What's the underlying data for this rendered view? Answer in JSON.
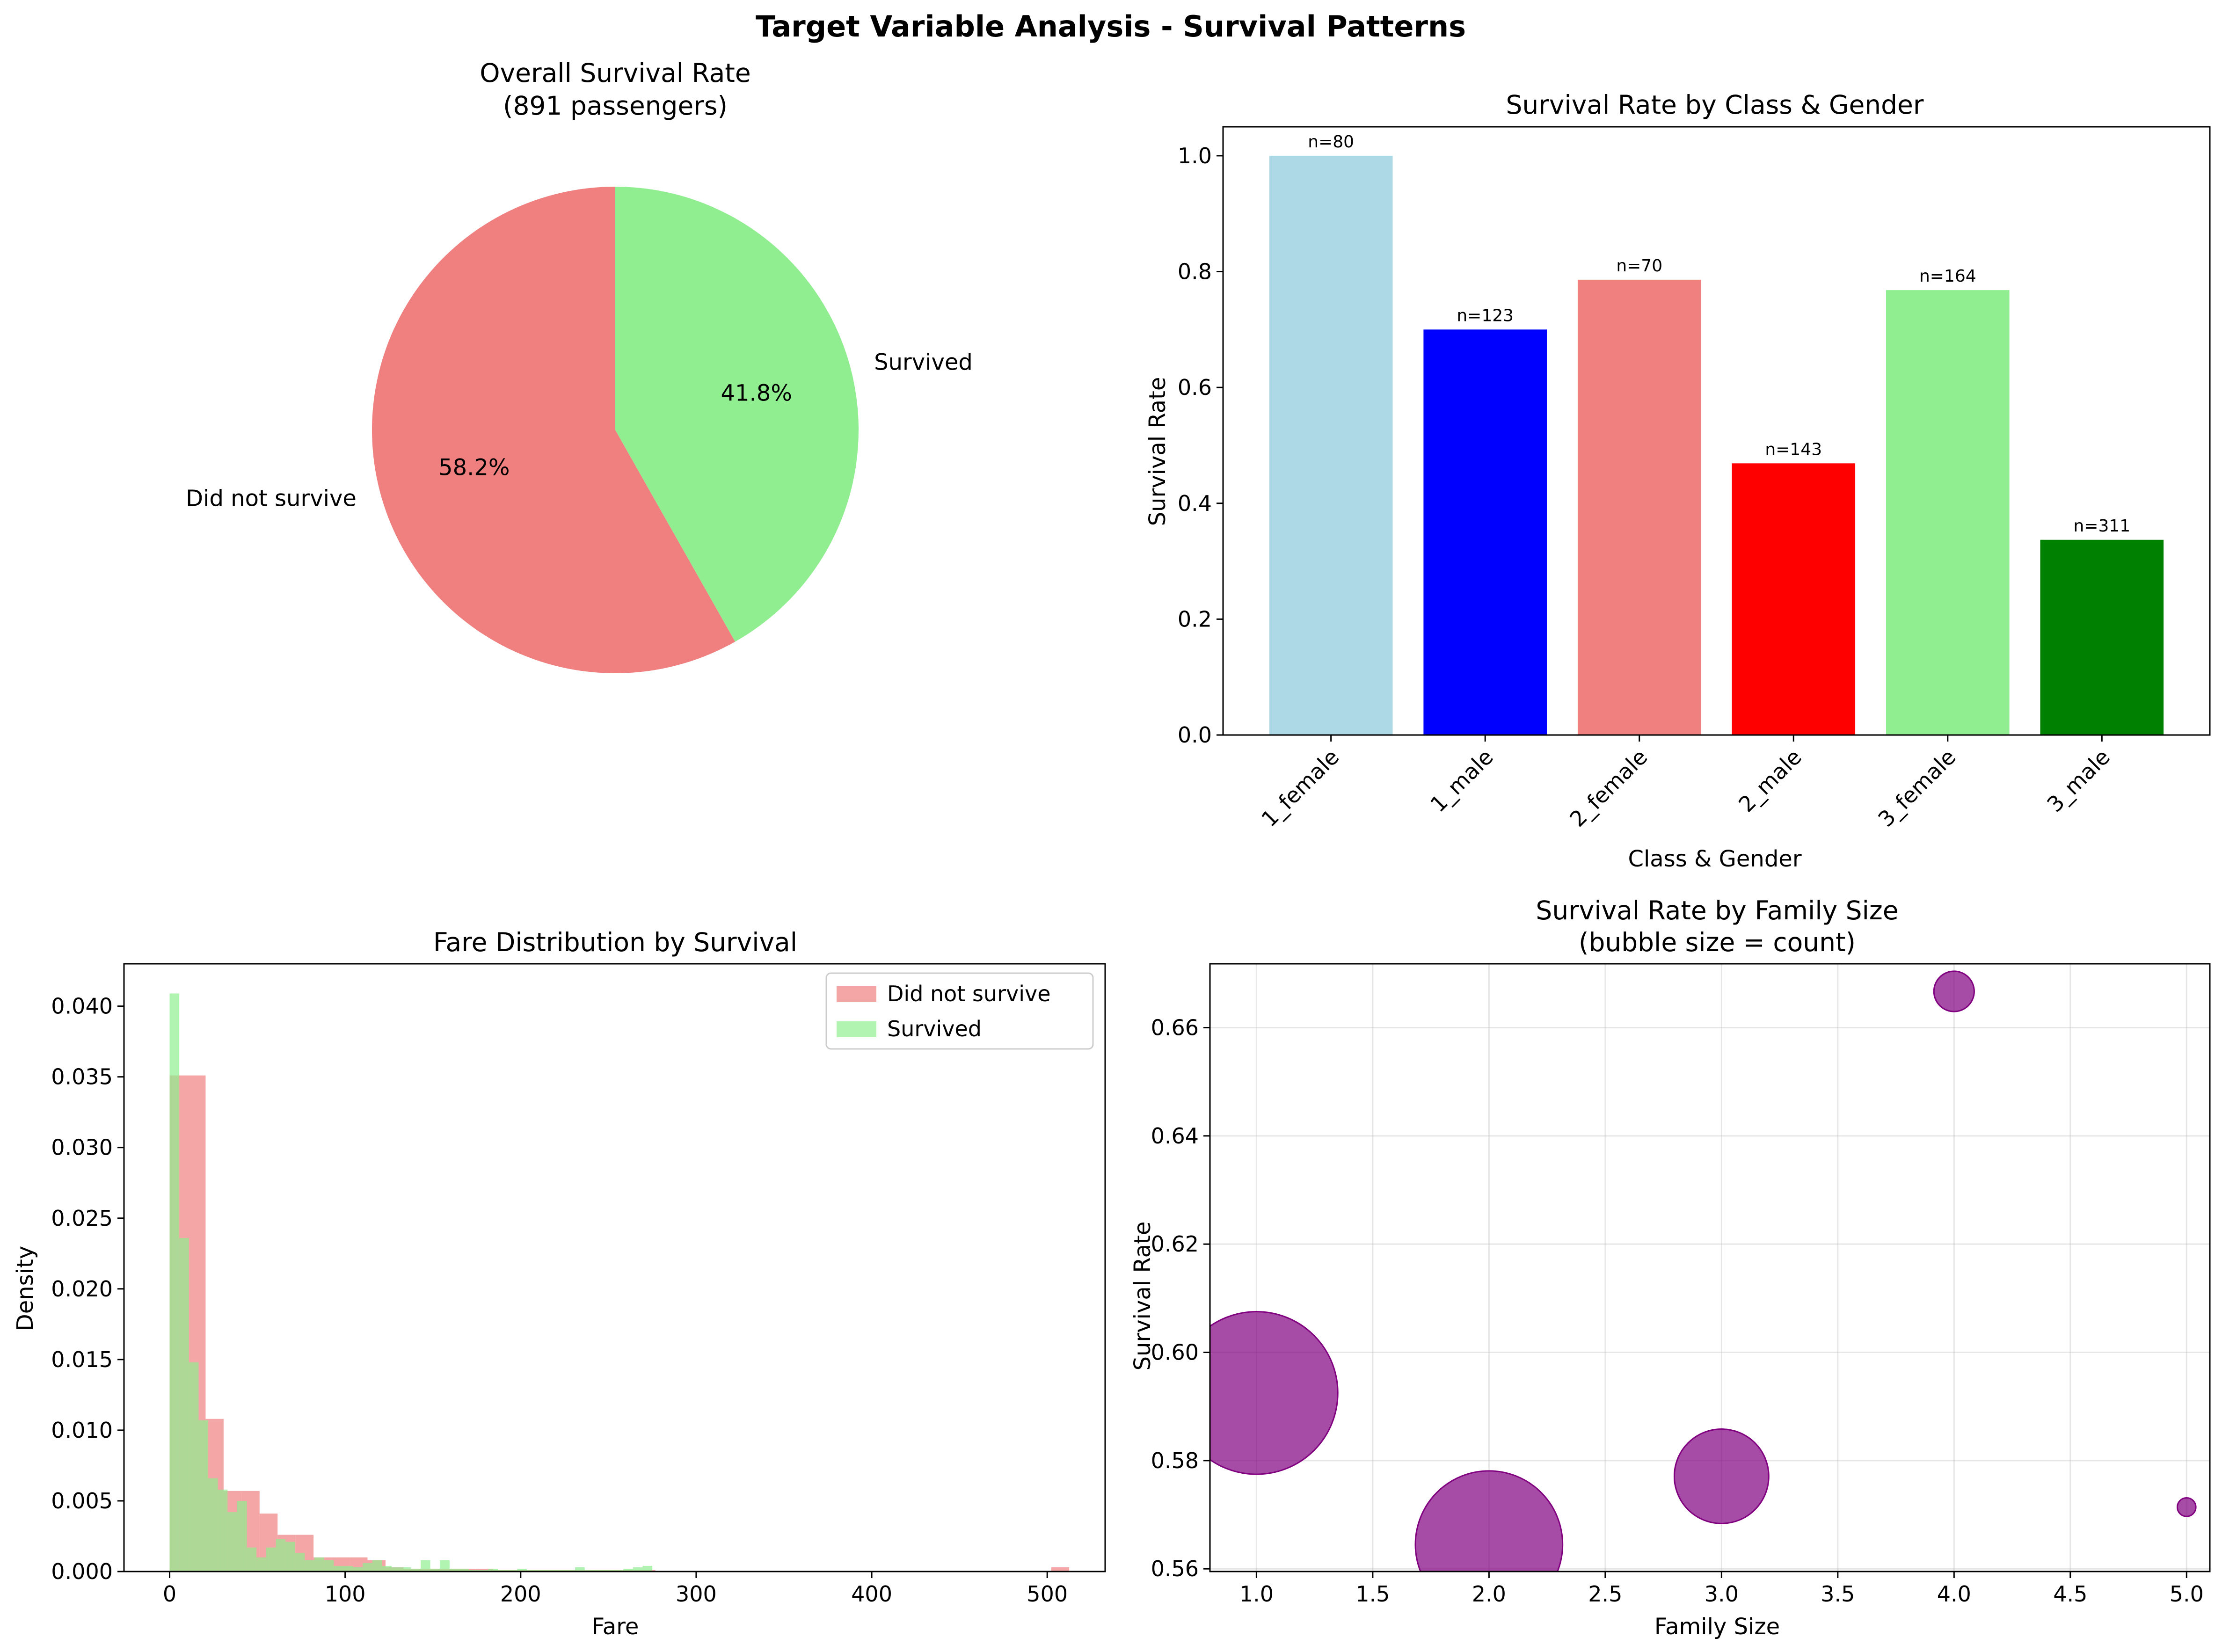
{
  "suptitle": "Target Variable Analysis - Survival Patterns",
  "chart_data": [
    {
      "type": "pie",
      "title_line1": "Overall Survival Rate",
      "title_line2": "(891 passengers)",
      "slices": [
        {
          "label": "Did not survive",
          "pct_label": "58.2%",
          "value": 58.2,
          "color": "#f08080"
        },
        {
          "label": "Survived",
          "pct_label": "41.8%",
          "value": 41.8,
          "color": "#90ee90"
        }
      ],
      "startangle": 90
    },
    {
      "type": "bar",
      "title": "Survival Rate by Class & Gender",
      "xlabel": "Class & Gender",
      "ylabel": "Survival Rate",
      "ylim": [
        0,
        1.05
      ],
      "yticks": [
        "0.0",
        "0.2",
        "0.4",
        "0.6",
        "0.8",
        "1.0"
      ],
      "categories": [
        "1_female",
        "1_male",
        "2_female",
        "2_male",
        "3_female",
        "3_male"
      ],
      "values": [
        1.0,
        0.7,
        0.786,
        0.469,
        0.768,
        0.337
      ],
      "annotations": [
        "n=80",
        "n=123",
        "n=70",
        "n=143",
        "n=164",
        "n=311"
      ],
      "colors": [
        "#add8e6",
        "#0000ff",
        "#f08080",
        "#ff0000",
        "#90ee90",
        "#008000"
      ]
    },
    {
      "type": "histogram",
      "title": "Fare Distribution by Survival",
      "xlabel": "Fare",
      "ylabel": "Density",
      "xlim": [
        -26,
        533
      ],
      "ylim": [
        0,
        0.043
      ],
      "xticks": [
        "0",
        "100",
        "200",
        "300",
        "400",
        "500"
      ],
      "yticks": [
        "0.000",
        "0.005",
        "0.010",
        "0.015",
        "0.020",
        "0.025",
        "0.030",
        "0.035",
        "0.040"
      ],
      "legend_position": "top-right",
      "series": [
        {
          "name": "Did not survive",
          "color": "#f08080",
          "bin_width": 10.25,
          "densities": [
            0.0351,
            0.0351,
            0.0108,
            0.0057,
            0.0057,
            0.0041,
            0.0026,
            0.0026,
            0.001,
            0.001,
            0.001,
            0.0008,
            0.0003,
            0.0002,
            0.0002,
            0.0002,
            0.0002,
            0.0002,
            0.0001,
            0.0001,
            0.0001,
            0.0001,
            0.0001,
            0.0001,
            0.0001,
            0.0001,
            0.0001,
            0,
            0,
            0,
            0,
            0,
            0,
            0,
            0,
            0,
            0,
            0,
            0,
            0,
            0,
            0,
            0,
            0,
            0,
            0,
            0,
            0,
            0,
            0.0003
          ]
        },
        {
          "name": "Survived",
          "color": "#90ee90",
          "bin_width": 5.5,
          "densities": [
            0.0409,
            0.0236,
            0.0148,
            0.0107,
            0.0066,
            0.0058,
            0.0042,
            0.005,
            0.0017,
            0.001,
            0.0017,
            0.0023,
            0.0021,
            0.0013,
            0.0008,
            0.001,
            0.0008,
            0.0004,
            0.0004,
            0.0003,
            0.0006,
            0.0008,
            0.0004,
            0.0003,
            0.0003,
            0.0002,
            0.0008,
            0.0002,
            0.0008,
            0.0002,
            0.0002,
            0.0001,
            0.0001,
            0.0002,
            0.0001,
            0.0001,
            0.0002,
            0.0001,
            0.0001,
            0.0001,
            0.0001,
            0.0001,
            0.0003,
            0.0001,
            0.0001,
            0.0001,
            0.0001,
            0.0002,
            0.0003,
            0.0004
          ]
        }
      ]
    },
    {
      "type": "scatter",
      "title_line1": "Survival Rate by Family Size",
      "title_line2": "(bubble size = count)",
      "xlabel": "Family Size",
      "ylabel": "Survival Rate",
      "xlim": [
        0.8,
        5.1
      ],
      "ylim": [
        0.5595,
        0.6718
      ],
      "xticks": [
        1.0,
        1.5,
        2.0,
        2.5,
        3.0,
        3.5,
        4.0,
        4.5,
        5.0
      ],
      "xtick_labels": [
        "1.0",
        "1.5",
        "2.0",
        "2.5",
        "3.0",
        "3.5",
        "4.0",
        "4.5",
        "5.0"
      ],
      "yticks": [
        0.56,
        0.58,
        0.6,
        0.62,
        0.64,
        0.66
      ],
      "ytick_labels": [
        "0.56",
        "0.58",
        "0.60",
        "0.62",
        "0.64",
        "0.66"
      ],
      "grid": true,
      "color": "#800080",
      "points": [
        {
          "x": 1.0,
          "y": 0.5925,
          "count": 537
        },
        {
          "x": 2.0,
          "y": 0.5645,
          "count": 440
        },
        {
          "x": 3.0,
          "y": 0.5771,
          "count": 181
        },
        {
          "x": 4.0,
          "y": 0.6667,
          "count": 33
        },
        {
          "x": 5.0,
          "y": 0.5714,
          "count": 7
        }
      ]
    }
  ]
}
